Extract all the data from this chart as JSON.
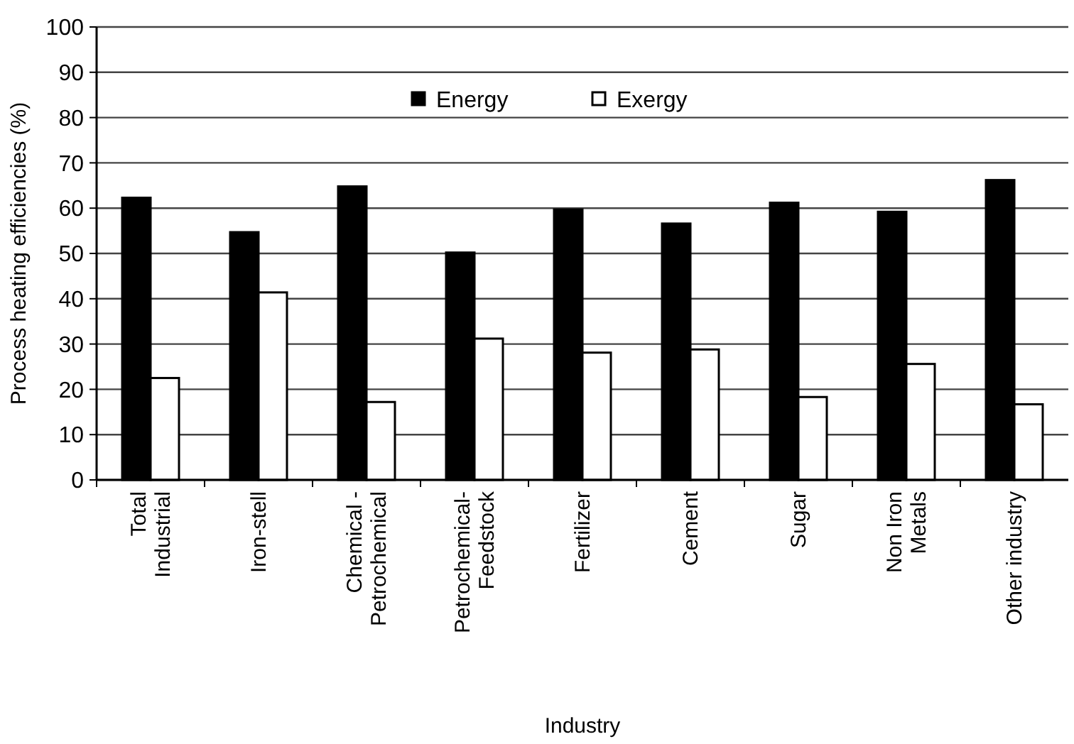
{
  "chart_data": {
    "type": "bar",
    "xlabel": "Industry",
    "ylabel": "Process heating efficiencies (%)",
    "categories": [
      "Total\nIndustrial",
      "Iron-stell",
      "Chemical -\nPetrochemical",
      "Petrochemical-\nFeedstock",
      "Fertilizer",
      "Cement",
      "Sugar",
      "Non Iron\nMetals",
      "Other industry"
    ],
    "series": [
      {
        "name": "Energy",
        "color": "#000000",
        "values": [
          62.3,
          54.7,
          64.8,
          50.2,
          59.7,
          56.6,
          61.2,
          59.2,
          66.2
        ]
      },
      {
        "name": "Exergy",
        "color": "#ffffff",
        "values": [
          22.5,
          41.4,
          17.2,
          31.2,
          28.1,
          28.8,
          18.3,
          25.6,
          16.7
        ]
      }
    ],
    "ylim": [
      0,
      100
    ],
    "yticks": [
      0,
      10,
      20,
      30,
      40,
      50,
      60,
      70,
      80,
      90,
      100
    ],
    "grid": "y",
    "legend": "top"
  }
}
